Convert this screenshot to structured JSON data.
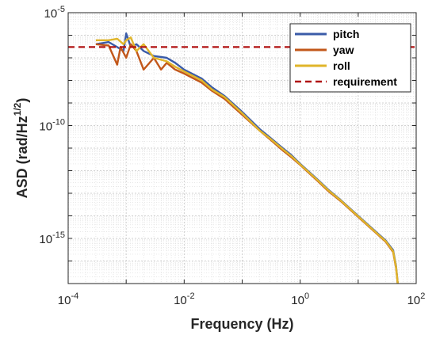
{
  "chart_data": {
    "type": "line",
    "title": "",
    "xlabel": "Frequency (Hz)",
    "ylabel": "ASD (rad/Hz",
    "ylabel_sup": "1/2",
    "ylabel_suffix": ")",
    "xscale": "log",
    "yscale": "log",
    "xlim": [
      0.0001,
      100
    ],
    "ylim": [
      1e-17,
      1e-05
    ],
    "grid": true,
    "minor_grid": true,
    "legend_position": "top-right",
    "x_ticks": [
      {
        "value": 0.0001,
        "base": "10",
        "exp": "-4"
      },
      {
        "value": 0.01,
        "base": "10",
        "exp": "-2"
      },
      {
        "value": 1,
        "base": "10",
        "exp": "0"
      },
      {
        "value": 100,
        "base": "10",
        "exp": "2"
      }
    ],
    "y_ticks": [
      {
        "value": 1e-15,
        "base": "10",
        "exp": "-15"
      },
      {
        "value": 1e-10,
        "base": "10",
        "exp": "-10"
      },
      {
        "value": 1e-05,
        "base": "10",
        "exp": "-5"
      }
    ],
    "series": [
      {
        "name": "pitch",
        "color": "#3a5ba8",
        "style": "solid",
        "x": [
          0.0003,
          0.0005,
          0.0007,
          0.0009,
          0.001,
          0.0012,
          0.0015,
          0.002,
          0.003,
          0.005,
          0.007,
          0.01,
          0.02,
          0.03,
          0.05,
          0.1,
          0.2,
          0.3,
          0.5,
          0.7,
          1,
          2,
          3,
          5,
          10,
          20,
          30,
          40,
          45,
          48,
          50
        ],
        "y": [
          4e-07,
          5e-07,
          3e-07,
          2e-07,
          1.2e-06,
          3e-07,
          4e-07,
          2e-07,
          1.2e-07,
          1e-07,
          6e-08,
          3e-08,
          1.2e-08,
          5e-09,
          2e-09,
          4e-10,
          7e-11,
          3e-11,
          1e-11,
          5e-12,
          2e-12,
          4e-13,
          1.5e-13,
          5e-14,
          1e-14,
          2e-15,
          8e-16,
          3e-16,
          6e-17,
          1e-17,
          1e-17
        ]
      },
      {
        "name": "yaw",
        "color": "#c2571a",
        "style": "solid",
        "x": [
          0.0003,
          0.0005,
          0.0007,
          0.0008,
          0.001,
          0.0012,
          0.0015,
          0.002,
          0.003,
          0.004,
          0.005,
          0.007,
          0.01,
          0.02,
          0.03,
          0.05,
          0.1,
          0.2,
          0.3,
          0.5,
          0.7,
          1,
          2,
          3,
          5,
          10,
          20,
          30,
          40,
          45,
          48,
          50
        ],
        "y": [
          4e-07,
          3.5e-07,
          5e-08,
          3e-07,
          1e-07,
          4e-07,
          2e-07,
          3e-08,
          1e-07,
          3e-08,
          6e-08,
          3e-08,
          2e-08,
          8e-09,
          3.5e-09,
          1.5e-09,
          3e-10,
          6e-11,
          2.5e-11,
          8e-12,
          4e-12,
          1.8e-12,
          3.5e-13,
          1.3e-13,
          4.5e-14,
          9e-15,
          1.8e-15,
          7e-16,
          2.5e-16,
          5e-17,
          1e-17,
          1e-17
        ]
      },
      {
        "name": "roll",
        "color": "#e0b52a",
        "style": "solid",
        "x": [
          0.0003,
          0.0005,
          0.0007,
          0.0009,
          0.001,
          0.0012,
          0.0015,
          0.002,
          0.003,
          0.005,
          0.007,
          0.01,
          0.02,
          0.03,
          0.05,
          0.1,
          0.2,
          0.3,
          0.5,
          0.7,
          1,
          2,
          3,
          5,
          10,
          20,
          30,
          40,
          45,
          48,
          50
        ],
        "y": [
          6e-07,
          6e-07,
          7e-07,
          4e-07,
          6e-07,
          8e-07,
          2e-07,
          4e-07,
          1e-07,
          7e-08,
          4e-08,
          2.5e-08,
          1e-08,
          4e-09,
          1.8e-09,
          3.5e-10,
          6e-11,
          2.7e-11,
          9e-12,
          4.5e-12,
          1.9e-12,
          3.8e-13,
          1.4e-13,
          4.8e-14,
          9.5e-15,
          1.9e-15,
          7.5e-16,
          2.7e-16,
          5.5e-17,
          1e-17,
          1e-17
        ]
      },
      {
        "name": "requirement",
        "color": "#b01010",
        "style": "dashed",
        "x": [
          0.0001,
          100
        ],
        "y": [
          3e-07,
          3e-07
        ]
      }
    ]
  }
}
